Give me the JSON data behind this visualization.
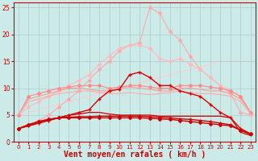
{
  "background_color": "#cceae7",
  "grid_color": "#aacccc",
  "xlabel": "Vent moyen/en rafales ( km/h )",
  "xlabel_color": "#cc0000",
  "xlabel_fontsize": 7,
  "tick_color": "#cc0000",
  "xlim": [
    -0.5,
    23.5
  ],
  "ylim": [
    0,
    26
  ],
  "yticks": [
    0,
    5,
    10,
    15,
    20,
    25
  ],
  "xticks": [
    0,
    1,
    2,
    3,
    4,
    5,
    6,
    7,
    8,
    9,
    10,
    11,
    12,
    13,
    14,
    15,
    16,
    17,
    18,
    19,
    20,
    21,
    22,
    23
  ],
  "series": [
    {
      "x": [
        0,
        1,
        2,
        3,
        4,
        5,
        6,
        7,
        8,
        9,
        10,
        11,
        12,
        13,
        14,
        15,
        16,
        17,
        18,
        19,
        20,
        21,
        22,
        23
      ],
      "y": [
        2.5,
        3.0,
        4.0,
        5.0,
        6.5,
        8.0,
        9.5,
        11.5,
        13.5,
        15.0,
        17.0,
        18.0,
        18.5,
        25.0,
        24.0,
        20.5,
        19.0,
        16.0,
        13.5,
        12.0,
        10.5,
        9.0,
        5.5,
        5.0
      ],
      "color": "#ffaaaa",
      "linewidth": 0.8,
      "marker": "D",
      "markersize": 2.0,
      "zorder": 2
    },
    {
      "x": [
        0,
        1,
        2,
        3,
        4,
        5,
        6,
        7,
        8,
        9,
        10,
        11,
        12,
        13,
        14,
        15,
        16,
        17,
        18,
        19,
        20,
        21,
        22,
        23
      ],
      "y": [
        5.0,
        6.5,
        7.5,
        8.5,
        9.5,
        10.5,
        11.5,
        12.5,
        14.5,
        16.0,
        17.5,
        18.0,
        18.0,
        17.5,
        15.5,
        15.0,
        15.5,
        14.5,
        13.5,
        12.0,
        10.5,
        9.5,
        8.5,
        5.0
      ],
      "color": "#ffbbbb",
      "linewidth": 0.8,
      "marker": "D",
      "markersize": 2.0,
      "zorder": 2
    },
    {
      "x": [
        0,
        1,
        2,
        3,
        4,
        5,
        6,
        7,
        8,
        9,
        10,
        11,
        12,
        13,
        14,
        15,
        16,
        17,
        18,
        19,
        20,
        21,
        22,
        23
      ],
      "y": [
        5.0,
        5.5,
        6.0,
        6.5,
        7.0,
        7.5,
        8.0,
        8.5,
        9.0,
        9.5,
        10.0,
        10.5,
        11.0,
        11.5,
        12.0,
        12.5,
        13.0,
        13.5,
        14.0,
        14.5,
        15.0,
        15.0,
        15.0,
        15.0
      ],
      "color": "#ffcccc",
      "linewidth": 0.8,
      "marker": null,
      "markersize": 0,
      "zorder": 1
    },
    {
      "x": [
        0,
        1,
        2,
        3,
        4,
        5,
        6,
        7,
        8,
        9,
        10,
        11,
        12,
        13,
        14,
        15,
        16,
        17,
        18,
        19,
        20,
        21,
        22,
        23
      ],
      "y": [
        5.0,
        8.5,
        9.0,
        9.5,
        10.0,
        10.2,
        10.5,
        10.5,
        10.5,
        10.0,
        10.2,
        10.5,
        10.5,
        10.2,
        10.0,
        10.0,
        10.5,
        10.5,
        10.5,
        10.2,
        10.0,
        9.5,
        8.5,
        5.5
      ],
      "color": "#ff8888",
      "linewidth": 0.8,
      "marker": "D",
      "markersize": 2.0,
      "zorder": 3
    },
    {
      "x": [
        0,
        1,
        2,
        3,
        4,
        5,
        6,
        7,
        8,
        9,
        10,
        11,
        12,
        13,
        14,
        15,
        16,
        17,
        18,
        19,
        20,
        21,
        22,
        23
      ],
      "y": [
        5.0,
        8.0,
        8.5,
        9.0,
        9.5,
        10.0,
        10.0,
        9.8,
        9.5,
        9.5,
        10.0,
        10.2,
        10.0,
        9.8,
        9.5,
        9.5,
        10.0,
        10.0,
        9.8,
        9.5,
        9.5,
        9.0,
        8.0,
        5.5
      ],
      "color": "#ff9999",
      "linewidth": 0.8,
      "marker": null,
      "markersize": 0,
      "zorder": 3
    },
    {
      "x": [
        0,
        1,
        2,
        3,
        4,
        5,
        6,
        7,
        8,
        9,
        10,
        11,
        12,
        13,
        14,
        15,
        16,
        17,
        18,
        19,
        20,
        21,
        22,
        23
      ],
      "y": [
        5.0,
        7.5,
        8.0,
        8.5,
        9.0,
        9.2,
        9.5,
        9.5,
        9.2,
        9.0,
        9.0,
        9.2,
        9.0,
        8.8,
        9.0,
        9.2,
        9.5,
        9.2,
        9.0,
        9.0,
        8.8,
        8.5,
        7.5,
        5.2
      ],
      "color": "#ffaaaa",
      "linewidth": 0.8,
      "marker": null,
      "markersize": 0,
      "zorder": 3
    },
    {
      "x": [
        0,
        1,
        2,
        3,
        4,
        5,
        6,
        7,
        8,
        9,
        10,
        11,
        12,
        13,
        14,
        15,
        16,
        17,
        18,
        19,
        20,
        21,
        22,
        23
      ],
      "y": [
        2.5,
        3.0,
        3.5,
        4.0,
        4.5,
        5.0,
        5.5,
        6.0,
        8.0,
        9.5,
        9.8,
        12.5,
        13.0,
        12.0,
        10.5,
        10.5,
        9.5,
        9.0,
        8.5,
        7.0,
        5.5,
        4.5,
        2.5,
        1.5
      ],
      "color": "#dd0000",
      "linewidth": 1.0,
      "marker": "+",
      "markersize": 3.0,
      "zorder": 6
    },
    {
      "x": [
        0,
        1,
        2,
        3,
        4,
        5,
        6,
        7,
        8,
        9,
        10,
        11,
        12,
        13,
        14,
        15,
        16,
        17,
        18,
        19,
        20,
        21,
        22,
        23
      ],
      "y": [
        2.5,
        3.2,
        3.8,
        4.2,
        4.5,
        4.5,
        4.5,
        4.5,
        4.5,
        4.5,
        4.5,
        4.5,
        4.5,
        4.4,
        4.3,
        4.2,
        4.0,
        3.8,
        3.6,
        3.4,
        3.2,
        3.0,
        2.2,
        1.5
      ],
      "color": "#cc0000",
      "linewidth": 1.0,
      "marker": "D",
      "markersize": 2.0,
      "zorder": 7
    },
    {
      "x": [
        0,
        1,
        2,
        3,
        4,
        5,
        6,
        7,
        8,
        9,
        10,
        11,
        12,
        13,
        14,
        15,
        16,
        17,
        18,
        19,
        20,
        21,
        22,
        23
      ],
      "y": [
        2.5,
        3.2,
        3.8,
        4.2,
        4.5,
        4.6,
        4.7,
        4.7,
        4.8,
        4.8,
        4.8,
        4.8,
        4.8,
        4.7,
        4.6,
        4.5,
        4.3,
        4.2,
        4.0,
        3.8,
        3.5,
        3.2,
        2.2,
        1.4
      ],
      "color": "#cc0000",
      "linewidth": 1.0,
      "marker": "+",
      "markersize": 3.0,
      "zorder": 7
    },
    {
      "x": [
        0,
        1,
        2,
        3,
        4,
        5,
        6,
        7,
        8,
        9,
        10,
        11,
        12,
        13,
        14,
        15,
        16,
        17,
        18,
        19,
        20,
        21,
        22,
        23
      ],
      "y": [
        2.5,
        3.0,
        3.5,
        4.0,
        4.5,
        5.0,
        5.2,
        5.5,
        5.5,
        5.2,
        5.0,
        5.0,
        5.0,
        5.0,
        4.8,
        4.8,
        4.8,
        4.8,
        4.8,
        4.8,
        4.8,
        4.5,
        1.8,
        1.2
      ],
      "color": "#cc0000",
      "linewidth": 0.9,
      "marker": null,
      "markersize": 0,
      "zorder": 5
    }
  ]
}
